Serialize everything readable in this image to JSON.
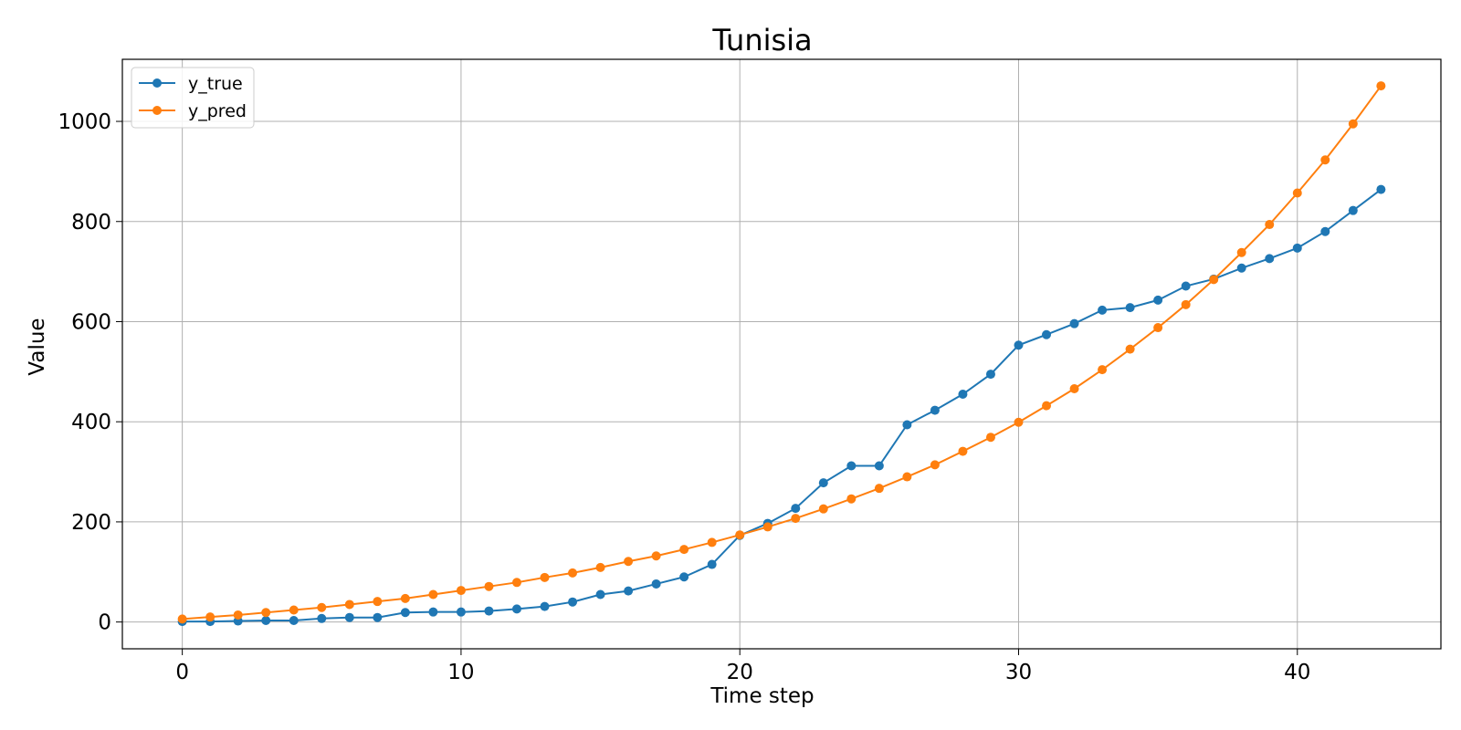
{
  "chart_data": {
    "type": "line",
    "title": "Tunisia",
    "xlabel": "Time step",
    "ylabel": "Value",
    "xlim": [
      -2.15,
      45.15
    ],
    "ylim": [
      -53.5,
      1124
    ],
    "xticks": [
      0,
      10,
      20,
      30,
      40
    ],
    "yticks": [
      0,
      200,
      400,
      600,
      800,
      1000
    ],
    "grid": true,
    "legend_position": "top-left",
    "x": [
      0,
      1,
      2,
      3,
      4,
      5,
      6,
      7,
      8,
      9,
      10,
      11,
      12,
      13,
      14,
      15,
      16,
      17,
      18,
      19,
      20,
      21,
      22,
      23,
      24,
      25,
      26,
      27,
      28,
      29,
      30,
      31,
      32,
      33,
      34,
      35,
      36,
      37,
      38,
      39,
      40,
      41,
      42,
      43
    ],
    "series": [
      {
        "name": "y_true",
        "color": "#1f77b4",
        "values": [
          1,
          1,
          2,
          3,
          3,
          7,
          9,
          9,
          19,
          20,
          20,
          22,
          26,
          31,
          40,
          55,
          62,
          76,
          90,
          115,
          173,
          197,
          227,
          278,
          312,
          312,
          394,
          423,
          455,
          495,
          553,
          574,
          596,
          623,
          628,
          643,
          671,
          685,
          707,
          726,
          747,
          780,
          822,
          864
        ]
      },
      {
        "name": "y_pred",
        "color": "#ff7f0e",
        "values": [
          6,
          10,
          14,
          19,
          24,
          29,
          35,
          41,
          47,
          55,
          63,
          71,
          79,
          89,
          98,
          109,
          121,
          132,
          145,
          159,
          174,
          190,
          207,
          226,
          246,
          267,
          290,
          314,
          341,
          369,
          399,
          432,
          466,
          504,
          545,
          588,
          634,
          684,
          738,
          794,
          857,
          923,
          995,
          1071
        ]
      }
    ]
  }
}
